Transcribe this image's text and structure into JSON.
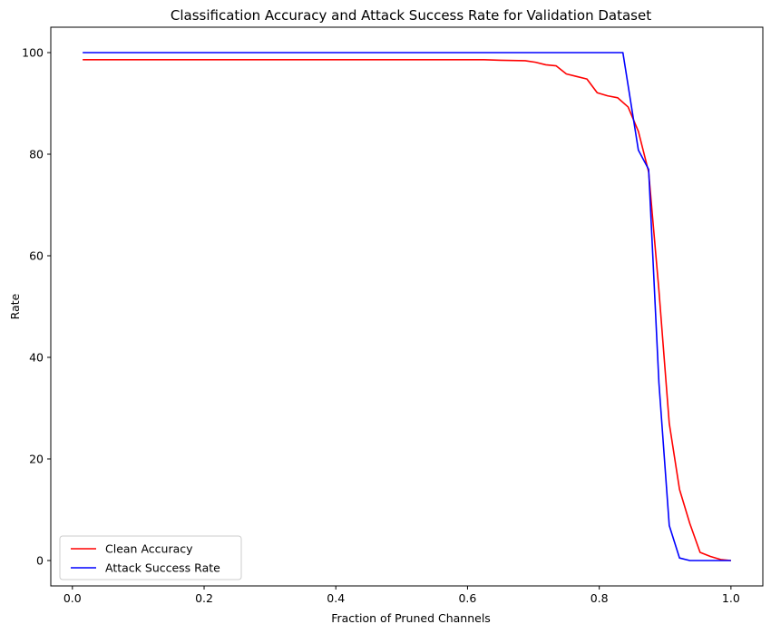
{
  "chart_data": {
    "type": "line",
    "title": "Classification Accuracy and Attack Success Rate for Validation Dataset",
    "xlabel": "Fraction of Pruned Channels",
    "ylabel": "Rate",
    "xlim": [
      -0.0328,
      1.0484
    ],
    "ylim": [
      -5,
      105
    ],
    "xticks": [
      0.0,
      0.2,
      0.4,
      0.6,
      0.8,
      1.0
    ],
    "xtick_labels": [
      "0.0",
      "0.2",
      "0.4",
      "0.6",
      "0.8",
      "1.0"
    ],
    "yticks": [
      0,
      20,
      40,
      60,
      80,
      100
    ],
    "ytick_labels": [
      "0",
      "20",
      "40",
      "60",
      "80",
      "100"
    ],
    "grid": false,
    "legend_position": "lower-left",
    "series": [
      {
        "name": "Clean Accuracy",
        "color": "#ff0000",
        "x": [
          0.0156,
          0.1,
          0.2,
          0.3,
          0.4,
          0.5,
          0.6,
          0.625,
          0.65,
          0.6875,
          0.7031,
          0.7188,
          0.7344,
          0.75,
          0.7656,
          0.7813,
          0.7969,
          0.8125,
          0.8281,
          0.8438,
          0.8594,
          0.875,
          0.8906,
          0.9063,
          0.9219,
          0.9375,
          0.9531,
          0.9688,
          0.9844,
          1.0
        ],
        "y": [
          98.6,
          98.6,
          98.6,
          98.6,
          98.6,
          98.6,
          98.6,
          98.6,
          98.5,
          98.4,
          98.1,
          97.6,
          97.4,
          95.8,
          95.3,
          94.8,
          92.1,
          91.5,
          91.1,
          89.3,
          84.5,
          76.5,
          53.2,
          27.0,
          14.0,
          7.3,
          1.6,
          0.8,
          0.2,
          0.0
        ]
      },
      {
        "name": "Attack Success Rate",
        "color": "#0000ff",
        "x": [
          0.0156,
          0.1,
          0.2,
          0.3,
          0.4,
          0.5,
          0.6,
          0.7,
          0.8,
          0.8281,
          0.8359,
          0.8594,
          0.875,
          0.8906,
          0.9063,
          0.9219,
          0.9375,
          0.9531,
          0.9688,
          0.9844,
          1.0
        ],
        "y": [
          100.0,
          100.0,
          100.0,
          100.0,
          100.0,
          100.0,
          100.0,
          100.0,
          100.0,
          100.0,
          100.0,
          80.8,
          77.0,
          35.0,
          6.9,
          0.5,
          0.0,
          0.0,
          0.0,
          0.0,
          0.0
        ]
      }
    ]
  }
}
